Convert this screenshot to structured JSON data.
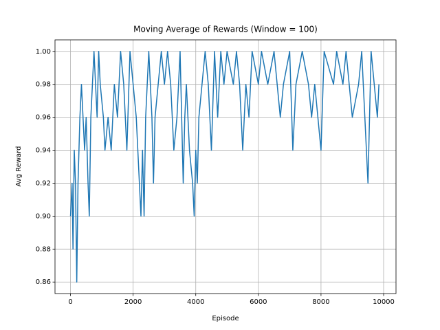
{
  "chart_data": {
    "type": "line",
    "title": "Moving Average of Rewards (Window = 100)",
    "x_label": "Episode",
    "y_label": "Avg Reward",
    "grid": true,
    "xlim": [
      -495,
      10395
    ],
    "ylim": [
      0.853,
      1.007
    ],
    "xticks": [
      0,
      2000,
      4000,
      6000,
      8000,
      10000
    ],
    "yticks": [
      0.86,
      0.88,
      {
        "value": 0.9,
        "label": "0.90"
      },
      0.92,
      0.94,
      0.96,
      0.98,
      {
        "value": 1.0,
        "label": "1.00"
      }
    ],
    "x": [
      0,
      50,
      80,
      120,
      160,
      200,
      240,
      300,
      350,
      400,
      450,
      500,
      560,
      600,
      650,
      700,
      750,
      800,
      850,
      900,
      950,
      1050,
      1100,
      1200,
      1300,
      1400,
      1500,
      1600,
      1700,
      1800,
      1900,
      2000,
      2100,
      2200,
      2250,
      2300,
      2350,
      2400,
      2500,
      2600,
      2650,
      2700,
      2800,
      2900,
      3000,
      3100,
      3200,
      3300,
      3400,
      3500,
      3600,
      3650,
      3700,
      3800,
      3900,
      3950,
      4000,
      4050,
      4100,
      4200,
      4300,
      4400,
      4500,
      4600,
      4700,
      4800,
      4900,
      5000,
      5200,
      5300,
      5400,
      5500,
      5600,
      5700,
      5800,
      6000,
      6100,
      6300,
      6500,
      6700,
      6800,
      7000,
      7100,
      7200,
      7400,
      7600,
      7700,
      7800,
      8000,
      8100,
      8400,
      8500,
      8700,
      8800,
      9000,
      9200,
      9300,
      9500,
      9550,
      9600,
      9700,
      9800,
      9850
    ],
    "series": [
      {
        "name": "Avg Reward",
        "color": "#1f77b4",
        "values": [
          0.9,
          0.92,
          0.88,
          0.94,
          0.92,
          0.86,
          0.92,
          0.96,
          0.98,
          0.96,
          0.94,
          0.96,
          0.92,
          0.9,
          0.96,
          0.98,
          1.0,
          0.98,
          0.96,
          1.0,
          0.98,
          0.96,
          0.94,
          0.96,
          0.94,
          0.98,
          0.96,
          1.0,
          0.98,
          0.94,
          1.0,
          0.98,
          0.96,
          0.92,
          0.9,
          0.94,
          0.9,
          0.96,
          1.0,
          0.96,
          0.92,
          0.96,
          0.98,
          1.0,
          0.98,
          1.0,
          0.98,
          0.94,
          0.96,
          1.0,
          0.92,
          0.96,
          0.98,
          0.94,
          0.92,
          0.9,
          0.94,
          0.92,
          0.96,
          0.98,
          1.0,
          0.98,
          0.94,
          1.0,
          0.96,
          1.0,
          0.98,
          1.0,
          0.98,
          1.0,
          0.98,
          0.94,
          0.98,
          0.96,
          1.0,
          0.98,
          1.0,
          0.98,
          1.0,
          0.96,
          0.98,
          1.0,
          0.94,
          0.98,
          1.0,
          0.98,
          0.96,
          0.98,
          0.94,
          1.0,
          0.98,
          1.0,
          0.98,
          1.0,
          0.96,
          0.98,
          1.0,
          0.92,
          0.96,
          1.0,
          0.98,
          0.96,
          0.98
        ]
      }
    ]
  }
}
